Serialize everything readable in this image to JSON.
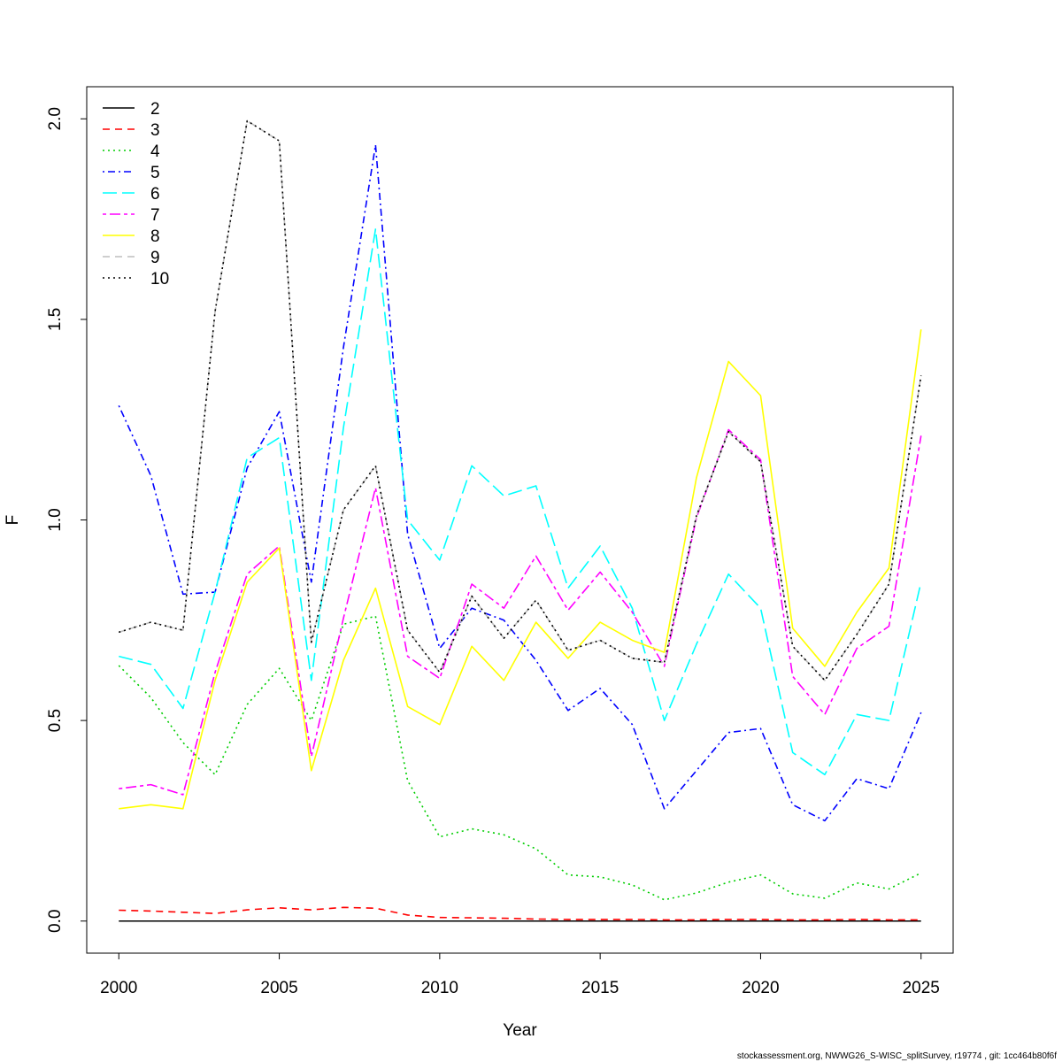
{
  "chart_data": {
    "type": "line",
    "xlabel": "Year",
    "ylabel": "F",
    "xlim": [
      1999,
      2026
    ],
    "ylim": [
      -0.08,
      2.08
    ],
    "xticks": [
      2000,
      2005,
      2010,
      2015,
      2020,
      2025
    ],
    "yticks": [
      0.0,
      0.5,
      1.0,
      1.5,
      2.0
    ],
    "ytick_labels": [
      "0.0",
      "0.5",
      "1.0",
      "1.5",
      "2.0"
    ],
    "grid": false,
    "legend": "top-left",
    "x": [
      2000,
      2001,
      2002,
      2003,
      2004,
      2005,
      2006,
      2007,
      2008,
      2009,
      2010,
      2011,
      2012,
      2013,
      2014,
      2015,
      2016,
      2017,
      2018,
      2019,
      2020,
      2021,
      2022,
      2023,
      2024,
      2025
    ],
    "series": [
      {
        "name": "2",
        "color": "#000000",
        "dash": "solid",
        "values": [
          0,
          0,
          0,
          0,
          0,
          0,
          0,
          0,
          0,
          0,
          0,
          0,
          0,
          0,
          0,
          0,
          0,
          0,
          0,
          0,
          0,
          0,
          0,
          0,
          0,
          0
        ]
      },
      {
        "name": "3",
        "color": "#FF0000",
        "dash": "dashed",
        "values": [
          0.027,
          0.025,
          0.022,
          0.019,
          0.028,
          0.033,
          0.028,
          0.034,
          0.032,
          0.015,
          0.009,
          0.008,
          0.007,
          0.005,
          0.004,
          0.004,
          0.004,
          0.003,
          0.003,
          0.004,
          0.004,
          0.003,
          0.003,
          0.004,
          0.003,
          0.003
        ]
      },
      {
        "name": "4",
        "color": "#00CD00",
        "dash": "dotted",
        "values": [
          0.637,
          0.557,
          0.445,
          0.365,
          0.54,
          0.63,
          0.5,
          0.74,
          0.76,
          0.35,
          0.21,
          0.23,
          0.215,
          0.18,
          0.115,
          0.11,
          0.09,
          0.053,
          0.07,
          0.097,
          0.115,
          0.068,
          0.057,
          0.095,
          0.08,
          0.12
        ]
      },
      {
        "name": "5",
        "color": "#0000FF",
        "dash": "dotdash",
        "values": [
          1.285,
          1.11,
          0.815,
          0.82,
          1.13,
          1.27,
          0.845,
          1.43,
          1.935,
          0.965,
          0.68,
          0.78,
          0.75,
          0.65,
          0.525,
          0.58,
          0.49,
          0.28,
          0.375,
          0.47,
          0.48,
          0.29,
          0.25,
          0.355,
          0.33,
          0.52
        ]
      },
      {
        "name": "6",
        "color": "#00FFFF",
        "dash": "longdash",
        "values": [
          0.66,
          0.64,
          0.53,
          0.82,
          1.155,
          1.205,
          0.6,
          1.23,
          1.725,
          1.0,
          0.9,
          1.135,
          1.06,
          1.085,
          0.83,
          0.935,
          0.78,
          0.5,
          0.69,
          0.865,
          0.78,
          0.42,
          0.365,
          0.515,
          0.5,
          0.845
        ]
      },
      {
        "name": "7",
        "color": "#FF00FF",
        "dash": "twodash",
        "values": [
          0.33,
          0.34,
          0.315,
          0.62,
          0.865,
          0.935,
          0.41,
          0.755,
          1.08,
          0.66,
          0.605,
          0.84,
          0.78,
          0.91,
          0.775,
          0.87,
          0.77,
          0.635,
          1.005,
          1.225,
          1.15,
          0.61,
          0.515,
          0.68,
          0.735,
          1.21
        ]
      },
      {
        "name": "8",
        "color": "#FFFF00",
        "dash": "solid",
        "values": [
          0.28,
          0.29,
          0.28,
          0.6,
          0.845,
          0.93,
          0.375,
          0.65,
          0.83,
          0.535,
          0.49,
          0.685,
          0.6,
          0.745,
          0.655,
          0.745,
          0.7,
          0.67,
          1.105,
          1.395,
          1.31,
          0.73,
          0.635,
          0.77,
          0.88,
          1.475
        ]
      },
      {
        "name": "9",
        "color": "#BEBEBE",
        "dash": "dashed",
        "values": [
          0.72,
          0.745,
          0.725,
          1.52,
          1.995,
          1.945,
          0.695,
          1.025,
          1.135,
          0.725,
          0.62,
          0.81,
          0.705,
          0.8,
          0.675,
          0.7,
          0.655,
          0.645,
          1.01,
          1.22,
          1.145,
          0.685,
          0.6,
          0.715,
          0.84,
          1.36
        ]
      },
      {
        "name": "10",
        "color": "#000000",
        "dash": "dotted",
        "values": [
          0.72,
          0.745,
          0.725,
          1.52,
          1.995,
          1.945,
          0.695,
          1.025,
          1.135,
          0.725,
          0.62,
          0.81,
          0.705,
          0.8,
          0.675,
          0.7,
          0.655,
          0.645,
          1.01,
          1.22,
          1.145,
          0.685,
          0.6,
          0.715,
          0.84,
          1.36
        ]
      }
    ]
  },
  "footer": "stockassessment.org, NWWG26_S-WISC_splitSurvey, r19774 , git: 1cc464b80f6f"
}
